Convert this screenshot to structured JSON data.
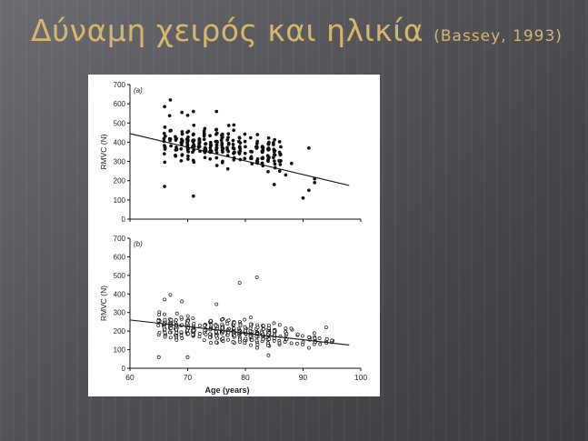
{
  "slide": {
    "title": "Δύναμη χειρός και ηλικία",
    "citation": "(Bassey, 1993)"
  },
  "colors": {
    "title": "#d9b56a",
    "background": "#55575c",
    "figure_bg": "#ffffff",
    "ink": "#111111"
  },
  "chart_data": [
    {
      "type": "scatter",
      "panel_label": "(a)",
      "marker": "filled",
      "ylabel": "RMVC (N)",
      "xlabel": "",
      "xlim": [
        60,
        100
      ],
      "ylim": [
        0,
        700
      ],
      "yticks": [
        0,
        100,
        200,
        300,
        400,
        500,
        600,
        700
      ],
      "xticks": [],
      "trend": {
        "x": [
          60,
          98
        ],
        "y": [
          445,
          175
        ]
      },
      "clusters": [
        {
          "x": [
            65,
            86
          ],
          "center": 375,
          "spread": 95,
          "n": 260,
          "seed": 11
        }
      ],
      "points": [
        {
          "x": 67,
          "y": 620
        },
        {
          "x": 66,
          "y": 585
        },
        {
          "x": 71,
          "y": 560
        },
        {
          "x": 75,
          "y": 560
        },
        {
          "x": 70,
          "y": 540
        },
        {
          "x": 69,
          "y": 555
        },
        {
          "x": 78,
          "y": 490
        },
        {
          "x": 91,
          "y": 370
        },
        {
          "x": 91,
          "y": 150
        },
        {
          "x": 90,
          "y": 110
        },
        {
          "x": 92,
          "y": 210
        },
        {
          "x": 92,
          "y": 190
        },
        {
          "x": 88,
          "y": 290
        },
        {
          "x": 87,
          "y": 230
        },
        {
          "x": 71,
          "y": 120
        },
        {
          "x": 66,
          "y": 170
        },
        {
          "x": 85,
          "y": 180
        }
      ]
    },
    {
      "type": "scatter",
      "panel_label": "(b)",
      "marker": "open",
      "ylabel": "RMVC (N)",
      "xlabel": "Age (years)",
      "xlim": [
        60,
        100
      ],
      "ylim": [
        0,
        700
      ],
      "yticks": [
        0,
        100,
        200,
        300,
        400,
        500,
        600,
        700
      ],
      "xticks": [
        60,
        70,
        80,
        90,
        100
      ],
      "trend": {
        "x": [
          60,
          98
        ],
        "y": [
          260,
          125
        ]
      },
      "clusters": [
        {
          "x": [
            65,
            86
          ],
          "center": 205,
          "spread": 70,
          "n": 300,
          "seed": 23
        },
        {
          "x": [
            84,
            95
          ],
          "center": 165,
          "spread": 45,
          "n": 45,
          "seed": 37
        }
      ],
      "points": [
        {
          "x": 67,
          "y": 395
        },
        {
          "x": 66,
          "y": 370
        },
        {
          "x": 69,
          "y": 360
        },
        {
          "x": 75,
          "y": 345
        },
        {
          "x": 82,
          "y": 490
        },
        {
          "x": 79,
          "y": 460
        },
        {
          "x": 94,
          "y": 220
        },
        {
          "x": 95,
          "y": 150
        },
        {
          "x": 91,
          "y": 110
        },
        {
          "x": 65,
          "y": 60
        },
        {
          "x": 70,
          "y": 60
        },
        {
          "x": 84,
          "y": 70
        }
      ]
    }
  ]
}
